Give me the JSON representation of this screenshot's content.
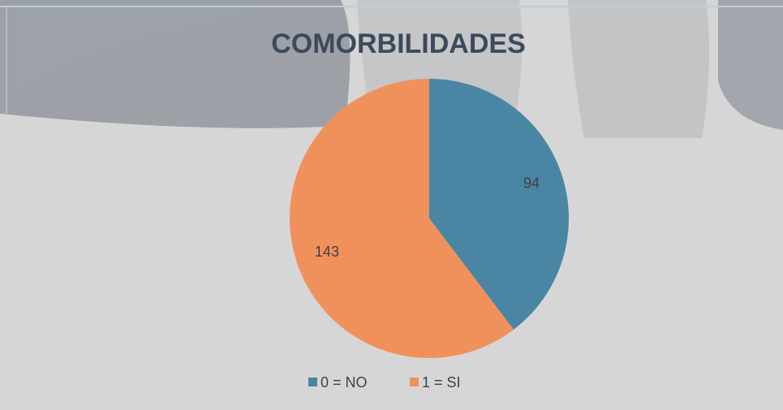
{
  "chart_data": {
    "type": "pie",
    "title": "COMORBILIDADES",
    "categories": [
      "0 = NO",
      "1 = SI"
    ],
    "values": [
      94,
      143
    ],
    "colors": [
      "#4a86a3",
      "#f0915c"
    ],
    "legend": "bottom"
  }
}
